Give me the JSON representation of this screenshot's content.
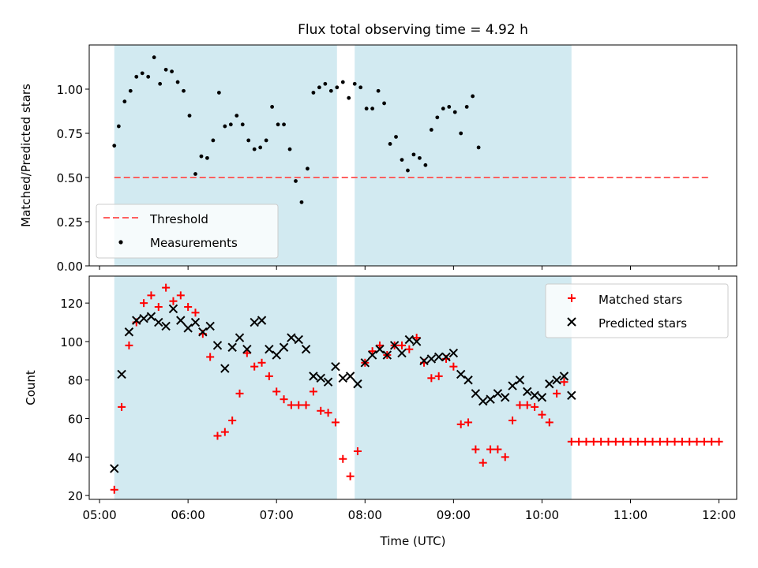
{
  "title": "Flux total observing time = 4.92 h",
  "colors": {
    "band": "#add8e6",
    "threshold": "#ff6060",
    "matched": "#ff0000",
    "predicted": "#000000",
    "measurement": "#000000"
  },
  "chart_data": [
    {
      "type": "scatter",
      "ylabel": "Matched/Predicted stars",
      "ylim": [
        0,
        1.25
      ],
      "yticks": [
        {
          "value": 0.0,
          "label": "0.00"
        },
        {
          "value": 0.25,
          "label": "0.25"
        },
        {
          "value": 0.5,
          "label": "0.50"
        },
        {
          "value": 0.75,
          "label": "0.75"
        },
        {
          "value": 1.0,
          "label": "1.00"
        }
      ],
      "xlim": [
        "04:53",
        "12:12"
      ],
      "observing_windows": [
        [
          "05:10",
          "07:41"
        ],
        [
          "07:53",
          "10:20"
        ]
      ],
      "legend_position": "lower-left",
      "threshold": {
        "name": "Threshold",
        "y": 0.5,
        "x_range": [
          "05:10",
          "11:53"
        ]
      },
      "series": [
        {
          "name": "Measurements",
          "points": [
            [
              "05:10",
              0.68
            ],
            [
              "05:13",
              0.79
            ],
            [
              "05:17",
              0.93
            ],
            [
              "05:21",
              0.99
            ],
            [
              "05:25",
              1.07
            ],
            [
              "05:29",
              1.09
            ],
            [
              "05:33",
              1.07
            ],
            [
              "05:37",
              1.18
            ],
            [
              "05:41",
              1.03
            ],
            [
              "05:45",
              1.11
            ],
            [
              "05:49",
              1.1
            ],
            [
              "05:53",
              1.04
            ],
            [
              "05:57",
              0.99
            ],
            [
              "06:01",
              0.85
            ],
            [
              "06:05",
              0.52
            ],
            [
              "06:09",
              0.62
            ],
            [
              "06:13",
              0.61
            ],
            [
              "06:17",
              0.71
            ],
            [
              "06:21",
              0.98
            ],
            [
              "06:25",
              0.79
            ],
            [
              "06:29",
              0.8
            ],
            [
              "06:33",
              0.85
            ],
            [
              "06:37",
              0.8
            ],
            [
              "06:41",
              0.71
            ],
            [
              "06:45",
              0.66
            ],
            [
              "06:49",
              0.67
            ],
            [
              "06:53",
              0.71
            ],
            [
              "06:57",
              0.9
            ],
            [
              "07:01",
              0.8
            ],
            [
              "07:05",
              0.8
            ],
            [
              "07:09",
              0.66
            ],
            [
              "07:13",
              0.48
            ],
            [
              "07:17",
              0.36
            ],
            [
              "07:21",
              0.55
            ],
            [
              "07:25",
              0.98
            ],
            [
              "07:29",
              1.01
            ],
            [
              "07:33",
              1.03
            ],
            [
              "07:37",
              0.99
            ],
            [
              "07:41",
              1.01
            ],
            [
              "07:45",
              1.04
            ],
            [
              "07:49",
              0.95
            ],
            [
              "07:53",
              1.03
            ],
            [
              "07:57",
              1.01
            ],
            [
              "08:01",
              0.89
            ],
            [
              "08:05",
              0.89
            ],
            [
              "08:09",
              0.99
            ],
            [
              "08:13",
              0.92
            ],
            [
              "08:17",
              0.69
            ],
            [
              "08:21",
              0.73
            ],
            [
              "08:25",
              0.6
            ],
            [
              "08:29",
              0.54
            ],
            [
              "08:33",
              0.63
            ],
            [
              "08:37",
              0.61
            ],
            [
              "08:41",
              0.57
            ],
            [
              "08:45",
              0.77
            ],
            [
              "08:49",
              0.84
            ],
            [
              "08:53",
              0.89
            ],
            [
              "08:57",
              0.9
            ],
            [
              "09:01",
              0.87
            ],
            [
              "09:05",
              0.75
            ],
            [
              "09:09",
              0.9
            ],
            [
              "09:13",
              0.96
            ],
            [
              "09:17",
              0.67
            ]
          ]
        }
      ]
    },
    {
      "type": "scatter",
      "ylabel": "Count",
      "xlabel": "Time (UTC)",
      "ylim": [
        18,
        134
      ],
      "yticks": [
        {
          "value": 20,
          "label": "20"
        },
        {
          "value": 40,
          "label": "40"
        },
        {
          "value": 60,
          "label": "60"
        },
        {
          "value": 80,
          "label": "80"
        },
        {
          "value": 100,
          "label": "100"
        },
        {
          "value": 120,
          "label": "120"
        }
      ],
      "xlim": [
        "04:53",
        "12:12"
      ],
      "xticks": [
        {
          "value": "05:00",
          "label": "05:00"
        },
        {
          "value": "06:00",
          "label": "06:00"
        },
        {
          "value": "07:00",
          "label": "07:00"
        },
        {
          "value": "08:00",
          "label": "08:00"
        },
        {
          "value": "09:00",
          "label": "09:00"
        },
        {
          "value": "10:00",
          "label": "10:00"
        },
        {
          "value": "11:00",
          "label": "11:00"
        },
        {
          "value": "12:00",
          "label": "12:00"
        }
      ],
      "observing_windows": [
        [
          "05:10",
          "07:41"
        ],
        [
          "07:53",
          "10:20"
        ]
      ],
      "legend_position": "top-right",
      "series": [
        {
          "name": "Matched stars",
          "marker": "plus",
          "points": [
            [
              "05:10",
              23
            ],
            [
              "05:15",
              66
            ],
            [
              "05:20",
              98
            ],
            [
              "05:25",
              110
            ],
            [
              "05:30",
              120
            ],
            [
              "05:35",
              124
            ],
            [
              "05:40",
              118
            ],
            [
              "05:45",
              128
            ],
            [
              "05:50",
              121
            ],
            [
              "05:55",
              124
            ],
            [
              "06:00",
              118
            ],
            [
              "06:05",
              115
            ],
            [
              "06:10",
              104
            ],
            [
              "06:15",
              92
            ],
            [
              "06:20",
              51
            ],
            [
              "06:25",
              53
            ],
            [
              "06:30",
              59
            ],
            [
              "06:35",
              73
            ],
            [
              "06:40",
              94
            ],
            [
              "06:45",
              87
            ],
            [
              "06:50",
              89
            ],
            [
              "06:55",
              82
            ],
            [
              "07:00",
              74
            ],
            [
              "07:05",
              70
            ],
            [
              "07:10",
              67
            ],
            [
              "07:15",
              67
            ],
            [
              "07:20",
              67
            ],
            [
              "07:25",
              74
            ],
            [
              "07:30",
              64
            ],
            [
              "07:35",
              63
            ],
            [
              "07:40",
              58
            ],
            [
              "07:45",
              39
            ],
            [
              "07:50",
              30
            ],
            [
              "07:55",
              43
            ],
            [
              "08:00",
              89
            ],
            [
              "08:05",
              95
            ],
            [
              "08:10",
              98
            ],
            [
              "08:15",
              93
            ],
            [
              "08:20",
              98
            ],
            [
              "08:25",
              98
            ],
            [
              "08:30",
              96
            ],
            [
              "08:35",
              102
            ],
            [
              "08:40",
              89
            ],
            [
              "08:45",
              81
            ],
            [
              "08:50",
              82
            ],
            [
              "08:55",
              91
            ],
            [
              "09:00",
              87
            ],
            [
              "09:05",
              57
            ],
            [
              "09:10",
              58
            ],
            [
              "09:15",
              44
            ],
            [
              "09:20",
              37
            ],
            [
              "09:25",
              44
            ],
            [
              "09:30",
              44
            ],
            [
              "09:35",
              40
            ],
            [
              "09:40",
              59
            ],
            [
              "09:45",
              67
            ],
            [
              "09:50",
              67
            ],
            [
              "09:55",
              66
            ],
            [
              "10:00",
              62
            ],
            [
              "10:05",
              58
            ],
            [
              "10:10",
              73
            ],
            [
              "10:15",
              79
            ],
            [
              "10:20",
              48
            ],
            [
              "10:25",
              48
            ],
            [
              "10:30",
              48
            ],
            [
              "10:35",
              48
            ],
            [
              "10:40",
              48
            ],
            [
              "10:45",
              48
            ],
            [
              "10:50",
              48
            ],
            [
              "10:55",
              48
            ],
            [
              "11:00",
              48
            ],
            [
              "11:05",
              48
            ],
            [
              "11:10",
              48
            ],
            [
              "11:15",
              48
            ],
            [
              "11:20",
              48
            ],
            [
              "11:25",
              48
            ],
            [
              "11:30",
              48
            ],
            [
              "11:35",
              48
            ],
            [
              "11:40",
              48
            ],
            [
              "11:45",
              48
            ],
            [
              "11:50",
              48
            ],
            [
              "11:55",
              48
            ],
            [
              "12:00",
              48
            ]
          ]
        },
        {
          "name": "Predicted stars",
          "marker": "x",
          "points": [
            [
              "05:10",
              34
            ],
            [
              "05:15",
              83
            ],
            [
              "05:20",
              105
            ],
            [
              "05:25",
              111
            ],
            [
              "05:30",
              112
            ],
            [
              "05:35",
              113
            ],
            [
              "05:40",
              110
            ],
            [
              "05:45",
              108
            ],
            [
              "05:50",
              117
            ],
            [
              "05:55",
              111
            ],
            [
              "06:00",
              107
            ],
            [
              "06:05",
              110
            ],
            [
              "06:10",
              105
            ],
            [
              "06:15",
              108
            ],
            [
              "06:20",
              98
            ],
            [
              "06:25",
              86
            ],
            [
              "06:30",
              97
            ],
            [
              "06:35",
              102
            ],
            [
              "06:40",
              96
            ],
            [
              "06:45",
              110
            ],
            [
              "06:50",
              111
            ],
            [
              "06:55",
              96
            ],
            [
              "07:00",
              93
            ],
            [
              "07:05",
              97
            ],
            [
              "07:10",
              102
            ],
            [
              "07:15",
              101
            ],
            [
              "07:20",
              96
            ],
            [
              "07:25",
              82
            ],
            [
              "07:30",
              81
            ],
            [
              "07:35",
              79
            ],
            [
              "07:40",
              87
            ],
            [
              "07:45",
              81
            ],
            [
              "07:50",
              82
            ],
            [
              "07:55",
              78
            ],
            [
              "08:00",
              89
            ],
            [
              "08:05",
              93
            ],
            [
              "08:10",
              96
            ],
            [
              "08:15",
              93
            ],
            [
              "08:20",
              98
            ],
            [
              "08:25",
              94
            ],
            [
              "08:30",
              101
            ],
            [
              "08:35",
              100
            ],
            [
              "08:40",
              90
            ],
            [
              "08:45",
              91
            ],
            [
              "08:50",
              92
            ],
            [
              "08:55",
              92
            ],
            [
              "09:00",
              94
            ],
            [
              "09:05",
              83
            ],
            [
              "09:10",
              80
            ],
            [
              "09:15",
              73
            ],
            [
              "09:20",
              69
            ],
            [
              "09:25",
              70
            ],
            [
              "09:30",
              73
            ],
            [
              "09:35",
              71
            ],
            [
              "09:40",
              77
            ],
            [
              "09:45",
              80
            ],
            [
              "09:50",
              74
            ],
            [
              "09:55",
              72
            ],
            [
              "10:00",
              71
            ],
            [
              "10:05",
              78
            ],
            [
              "10:10",
              80
            ],
            [
              "10:15",
              82
            ],
            [
              "10:20",
              72
            ]
          ]
        }
      ]
    }
  ]
}
